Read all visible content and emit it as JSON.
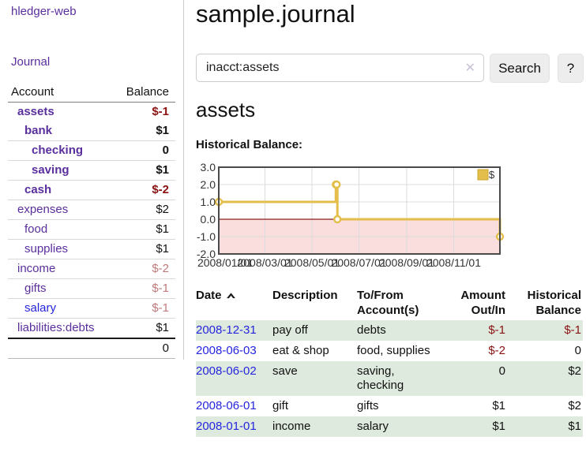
{
  "app": {
    "brand": "hledger-web"
  },
  "sidebar": {
    "journal_link": "Journal",
    "header": {
      "account": "Account",
      "balance": "Balance"
    },
    "accounts": [
      {
        "name": "assets",
        "depth": 1,
        "bold": true,
        "balance": "$-1",
        "balance_style": "neg-strong"
      },
      {
        "name": "bank",
        "depth": 2,
        "bold": true,
        "balance": "$1",
        "balance_style": "pos"
      },
      {
        "name": "checking",
        "depth": 3,
        "bold": true,
        "balance": "0",
        "balance_style": "pos"
      },
      {
        "name": "saving",
        "depth": 3,
        "bold": true,
        "balance": "$1",
        "balance_style": "pos"
      },
      {
        "name": "cash",
        "depth": 2,
        "bold": true,
        "balance": "$-2",
        "balance_style": "neg-strong"
      },
      {
        "name": "expenses",
        "depth": 1,
        "bold": false,
        "balance": "$2",
        "balance_style": "pos"
      },
      {
        "name": "food",
        "depth": 2,
        "bold": false,
        "balance": "$1",
        "balance_style": "pos"
      },
      {
        "name": "supplies",
        "depth": 2,
        "bold": false,
        "balance": "$1",
        "balance_style": "pos"
      },
      {
        "name": "income",
        "depth": 1,
        "bold": false,
        "balance": "$-2",
        "balance_style": "neg-soft"
      },
      {
        "name": "gifts",
        "depth": 2,
        "bold": false,
        "balance": "$-1",
        "balance_style": "neg-soft"
      },
      {
        "name": "salary",
        "depth": 2,
        "bold": false,
        "balance": "$-1",
        "balance_style": "neg-soft",
        "link_color": "blue"
      },
      {
        "name": "liabilities:debts",
        "depth": 1,
        "bold": false,
        "balance": "$1",
        "balance_style": "pos"
      }
    ],
    "total": "0"
  },
  "header": {
    "title": "sample.journal"
  },
  "search": {
    "query": "inacct:assets",
    "clear_icon": "✕",
    "button": "Search",
    "help_button": "?"
  },
  "account_page": {
    "title": "assets",
    "chart_label": "Historical Balance:"
  },
  "chart_data": {
    "type": "line",
    "title": "Historical Balance:",
    "legend": {
      "label": "$",
      "position": "top-right"
    },
    "ylim": [
      -2.0,
      3.0
    ],
    "yticks": [
      3.0,
      2.0,
      1.0,
      0.0,
      -1.0,
      -2.0
    ],
    "xlim_days": [
      0,
      365
    ],
    "x_unit": "days since 2008-01-01",
    "xticks": [
      {
        "day": 0,
        "label": "2008/01/01"
      },
      {
        "day": 60,
        "label": "2008/03/01"
      },
      {
        "day": 121,
        "label": "2008/05/01"
      },
      {
        "day": 182,
        "label": "2008/07/01"
      },
      {
        "day": 244,
        "label": "2008/09/01"
      },
      {
        "day": 305,
        "label": "2008/11/01"
      }
    ],
    "series": [
      {
        "name": "$",
        "step": true,
        "points": [
          [
            0,
            1
          ],
          [
            152,
            2
          ],
          [
            153,
            2
          ],
          [
            154,
            0
          ],
          [
            365,
            -1
          ]
        ]
      }
    ],
    "grid": true
  },
  "register": {
    "headers": [
      "Date",
      "Description",
      "To/From Account(s)",
      "Amount Out/In",
      "Historical Balance"
    ],
    "rows": [
      {
        "date": "2008-12-31",
        "description": "pay off",
        "accounts": "debts",
        "amount": "$-1",
        "amount_neg": true,
        "balance": "$-1",
        "balance_neg": true
      },
      {
        "date": "2008-06-03",
        "description": "eat & shop",
        "accounts": "food, supplies",
        "amount": "$-2",
        "amount_neg": true,
        "balance": "0",
        "balance_neg": false
      },
      {
        "date": "2008-06-02",
        "description": "save",
        "accounts": "saving, checking",
        "amount": "0",
        "amount_neg": false,
        "balance": "$2",
        "balance_neg": false
      },
      {
        "date": "2008-06-01",
        "description": "gift",
        "accounts": "gifts",
        "amount": "$1",
        "amount_neg": false,
        "balance": "$2",
        "balance_neg": false
      },
      {
        "date": "2008-01-01",
        "description": "income",
        "accounts": "salary",
        "amount": "$1",
        "amount_neg": false,
        "balance": "$1",
        "balance_neg": false
      }
    ]
  },
  "colors": {
    "purple": "#5a2f9d",
    "blue": "#2525dd",
    "neg_strong": "#8c1212",
    "neg_soft": "#c07a7a",
    "row_green": "#deeade",
    "line_gold": "#e4be4a",
    "negative_region_fill": "#fadddd",
    "zero_line": "#8c1e1e",
    "chart_border": "#4a4a4a",
    "gridline": "#dcdcdc"
  }
}
